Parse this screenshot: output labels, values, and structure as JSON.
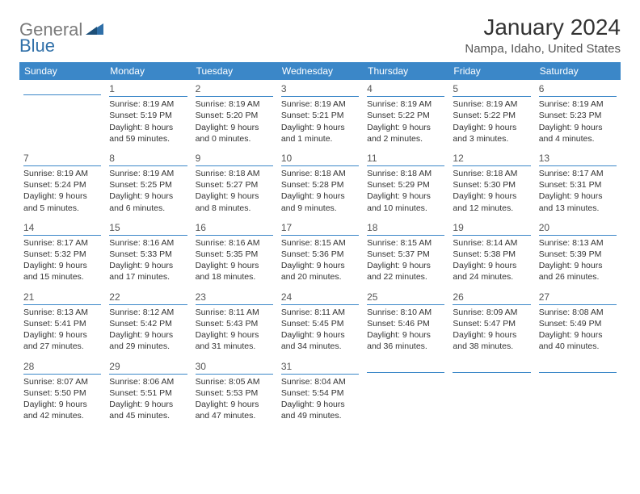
{
  "logo": {
    "text1": "General",
    "text2": "Blue"
  },
  "title": "January 2024",
  "location": "Nampa, Idaho, United States",
  "header_bg": "#3b87c8",
  "header_fg": "#ffffff",
  "rule_color": "#3b87c8",
  "font_family": "Arial, Helvetica, sans-serif",
  "title_fontsize": 28,
  "location_fontsize": 15,
  "dayheader_fontsize": 12,
  "cell_fontsize": 10.5,
  "days": [
    "Sunday",
    "Monday",
    "Tuesday",
    "Wednesday",
    "Thursday",
    "Friday",
    "Saturday"
  ],
  "weeks": [
    [
      null,
      {
        "n": "1",
        "sr": "8:19 AM",
        "ss": "5:19 PM",
        "dl": "8 hours and 59 minutes."
      },
      {
        "n": "2",
        "sr": "8:19 AM",
        "ss": "5:20 PM",
        "dl": "9 hours and 0 minutes."
      },
      {
        "n": "3",
        "sr": "8:19 AM",
        "ss": "5:21 PM",
        "dl": "9 hours and 1 minute."
      },
      {
        "n": "4",
        "sr": "8:19 AM",
        "ss": "5:22 PM",
        "dl": "9 hours and 2 minutes."
      },
      {
        "n": "5",
        "sr": "8:19 AM",
        "ss": "5:22 PM",
        "dl": "9 hours and 3 minutes."
      },
      {
        "n": "6",
        "sr": "8:19 AM",
        "ss": "5:23 PM",
        "dl": "9 hours and 4 minutes."
      }
    ],
    [
      {
        "n": "7",
        "sr": "8:19 AM",
        "ss": "5:24 PM",
        "dl": "9 hours and 5 minutes."
      },
      {
        "n": "8",
        "sr": "8:19 AM",
        "ss": "5:25 PM",
        "dl": "9 hours and 6 minutes."
      },
      {
        "n": "9",
        "sr": "8:18 AM",
        "ss": "5:27 PM",
        "dl": "9 hours and 8 minutes."
      },
      {
        "n": "10",
        "sr": "8:18 AM",
        "ss": "5:28 PM",
        "dl": "9 hours and 9 minutes."
      },
      {
        "n": "11",
        "sr": "8:18 AM",
        "ss": "5:29 PM",
        "dl": "9 hours and 10 minutes."
      },
      {
        "n": "12",
        "sr": "8:18 AM",
        "ss": "5:30 PM",
        "dl": "9 hours and 12 minutes."
      },
      {
        "n": "13",
        "sr": "8:17 AM",
        "ss": "5:31 PM",
        "dl": "9 hours and 13 minutes."
      }
    ],
    [
      {
        "n": "14",
        "sr": "8:17 AM",
        "ss": "5:32 PM",
        "dl": "9 hours and 15 minutes."
      },
      {
        "n": "15",
        "sr": "8:16 AM",
        "ss": "5:33 PM",
        "dl": "9 hours and 17 minutes."
      },
      {
        "n": "16",
        "sr": "8:16 AM",
        "ss": "5:35 PM",
        "dl": "9 hours and 18 minutes."
      },
      {
        "n": "17",
        "sr": "8:15 AM",
        "ss": "5:36 PM",
        "dl": "9 hours and 20 minutes."
      },
      {
        "n": "18",
        "sr": "8:15 AM",
        "ss": "5:37 PM",
        "dl": "9 hours and 22 minutes."
      },
      {
        "n": "19",
        "sr": "8:14 AM",
        "ss": "5:38 PM",
        "dl": "9 hours and 24 minutes."
      },
      {
        "n": "20",
        "sr": "8:13 AM",
        "ss": "5:39 PM",
        "dl": "9 hours and 26 minutes."
      }
    ],
    [
      {
        "n": "21",
        "sr": "8:13 AM",
        "ss": "5:41 PM",
        "dl": "9 hours and 27 minutes."
      },
      {
        "n": "22",
        "sr": "8:12 AM",
        "ss": "5:42 PM",
        "dl": "9 hours and 29 minutes."
      },
      {
        "n": "23",
        "sr": "8:11 AM",
        "ss": "5:43 PM",
        "dl": "9 hours and 31 minutes."
      },
      {
        "n": "24",
        "sr": "8:11 AM",
        "ss": "5:45 PM",
        "dl": "9 hours and 34 minutes."
      },
      {
        "n": "25",
        "sr": "8:10 AM",
        "ss": "5:46 PM",
        "dl": "9 hours and 36 minutes."
      },
      {
        "n": "26",
        "sr": "8:09 AM",
        "ss": "5:47 PM",
        "dl": "9 hours and 38 minutes."
      },
      {
        "n": "27",
        "sr": "8:08 AM",
        "ss": "5:49 PM",
        "dl": "9 hours and 40 minutes."
      }
    ],
    [
      {
        "n": "28",
        "sr": "8:07 AM",
        "ss": "5:50 PM",
        "dl": "9 hours and 42 minutes."
      },
      {
        "n": "29",
        "sr": "8:06 AM",
        "ss": "5:51 PM",
        "dl": "9 hours and 45 minutes."
      },
      {
        "n": "30",
        "sr": "8:05 AM",
        "ss": "5:53 PM",
        "dl": "9 hours and 47 minutes."
      },
      {
        "n": "31",
        "sr": "8:04 AM",
        "ss": "5:54 PM",
        "dl": "9 hours and 49 minutes."
      },
      null,
      null,
      null
    ]
  ],
  "labels": {
    "sunrise": "Sunrise:",
    "sunset": "Sunset:",
    "daylight": "Daylight:"
  }
}
